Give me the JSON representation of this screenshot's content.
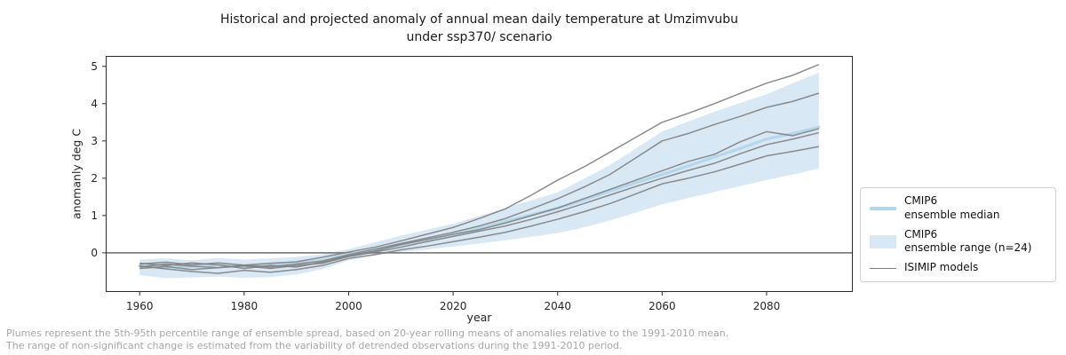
{
  "footnote": {
    "line1": "Plumes represent the 5th-95th percentile range of ensemble spread, based on 20-year rolling means of anomalies relative to the 1991-2010 mean.",
    "line2": "The range of non-significant change is estimated from the variability of detrended observations during the 1991-2010 period."
  },
  "legend": {
    "position": "center right, outside axes",
    "entries": [
      {
        "label": "CMIP6\nensemble median",
        "type": "thick-line",
        "color": "#b5d7eb"
      },
      {
        "label": "CMIP6\nensemble range (n=24)",
        "type": "patch",
        "color": "#d9e8f5"
      },
      {
        "label": "ISIMIP models",
        "type": "line",
        "color": "#7f7f7f"
      }
    ]
  },
  "chart_data": {
    "type": "line",
    "title": "Historical and projected anomaly of annual mean daily temperature at Umzimvubu\nunder ssp370/ scenario",
    "xlabel": "year",
    "ylabel": "anomanly deg C",
    "xlim": [
      1953.5,
      2096.5
    ],
    "ylim": [
      -1.05,
      5.28
    ],
    "xticks": [
      1960,
      1980,
      2000,
      2020,
      2040,
      2060,
      2080
    ],
    "yticks": [
      0,
      1,
      2,
      3,
      4,
      5
    ],
    "grid": false,
    "zero_line": 0,
    "colors": {
      "band_fill": "#d9e8f5",
      "median_line": "#b5d7eb",
      "isimip_line": "#7f7f7f",
      "zero_line": "#808080",
      "spine": "#2b2b2b",
      "tick_label": "#262626",
      "footnote_text": "#a6a6a6"
    },
    "years": [
      1960,
      1965,
      1970,
      1975,
      1980,
      1985,
      1990,
      1995,
      2000,
      2005,
      2010,
      2015,
      2020,
      2025,
      2030,
      2035,
      2040,
      2045,
      2050,
      2055,
      2060,
      2065,
      2070,
      2075,
      2080,
      2085,
      2090
    ],
    "band": {
      "name": "CMIP6 ensemble range (n=24)",
      "lower": [
        -0.6,
        -0.68,
        -0.66,
        -0.64,
        -0.67,
        -0.65,
        -0.58,
        -0.44,
        -0.2,
        -0.06,
        0.02,
        0.09,
        0.17,
        0.25,
        0.34,
        0.43,
        0.53,
        0.68,
        0.87,
        1.08,
        1.3,
        1.47,
        1.63,
        1.79,
        1.95,
        2.1,
        2.26
      ],
      "upper": [
        -0.18,
        -0.15,
        -0.2,
        -0.14,
        -0.18,
        -0.15,
        -0.11,
        -0.04,
        0.1,
        0.28,
        0.46,
        0.62,
        0.78,
        0.99,
        1.2,
        1.41,
        1.62,
        1.98,
        2.35,
        2.8,
        3.25,
        3.52,
        3.78,
        4.02,
        4.25,
        4.55,
        4.83
      ]
    },
    "median": {
      "name": "CMIP6 ensemble median",
      "values": [
        -0.35,
        -0.38,
        -0.36,
        -0.33,
        -0.36,
        -0.33,
        -0.29,
        -0.2,
        -0.04,
        0.08,
        0.21,
        0.34,
        0.47,
        0.65,
        0.84,
        1.02,
        1.2,
        1.42,
        1.65,
        1.88,
        2.1,
        2.33,
        2.57,
        2.8,
        3.05,
        3.2,
        3.37
      ]
    },
    "isimip": {
      "name": "ISIMIP models",
      "series": [
        {
          "values": [
            -0.3,
            -0.25,
            -0.32,
            -0.27,
            -0.33,
            -0.28,
            -0.24,
            -0.12,
            0.02,
            0.15,
            0.32,
            0.5,
            0.68,
            0.92,
            1.18,
            1.55,
            1.95,
            2.3,
            2.7,
            3.1,
            3.5,
            3.74,
            4.0,
            4.28,
            4.55,
            4.76,
            5.05
          ]
        },
        {
          "values": [
            -0.38,
            -0.3,
            -0.36,
            -0.4,
            -0.33,
            -0.38,
            -0.3,
            -0.22,
            -0.05,
            0.1,
            0.25,
            0.4,
            0.55,
            0.72,
            0.92,
            1.18,
            1.45,
            1.76,
            2.1,
            2.55,
            3.0,
            3.2,
            3.44,
            3.66,
            3.9,
            4.06,
            4.28
          ]
        },
        {
          "values": [
            -0.28,
            -0.34,
            -0.27,
            -0.32,
            -0.42,
            -0.34,
            -0.38,
            -0.25,
            -0.08,
            0.05,
            0.22,
            0.36,
            0.5,
            0.62,
            0.8,
            1.0,
            1.2,
            1.45,
            1.7,
            1.95,
            2.2,
            2.45,
            2.64,
            2.98,
            3.25,
            3.14,
            3.33
          ]
        },
        {
          "values": [
            -0.42,
            -0.37,
            -0.45,
            -0.4,
            -0.35,
            -0.42,
            -0.34,
            -0.28,
            -0.1,
            0.02,
            0.15,
            0.3,
            0.44,
            0.58,
            0.72,
            0.9,
            1.1,
            1.32,
            1.55,
            1.78,
            2.0,
            2.21,
            2.4,
            2.66,
            2.9,
            3.05,
            3.22
          ]
        },
        {
          "values": [
            -0.35,
            -0.43,
            -0.5,
            -0.55,
            -0.47,
            -0.52,
            -0.45,
            -0.34,
            -0.15,
            -0.05,
            0.08,
            0.18,
            0.3,
            0.42,
            0.55,
            0.72,
            0.9,
            1.1,
            1.32,
            1.58,
            1.85,
            2.0,
            2.17,
            2.38,
            2.6,
            2.72,
            2.85
          ]
        }
      ]
    }
  }
}
